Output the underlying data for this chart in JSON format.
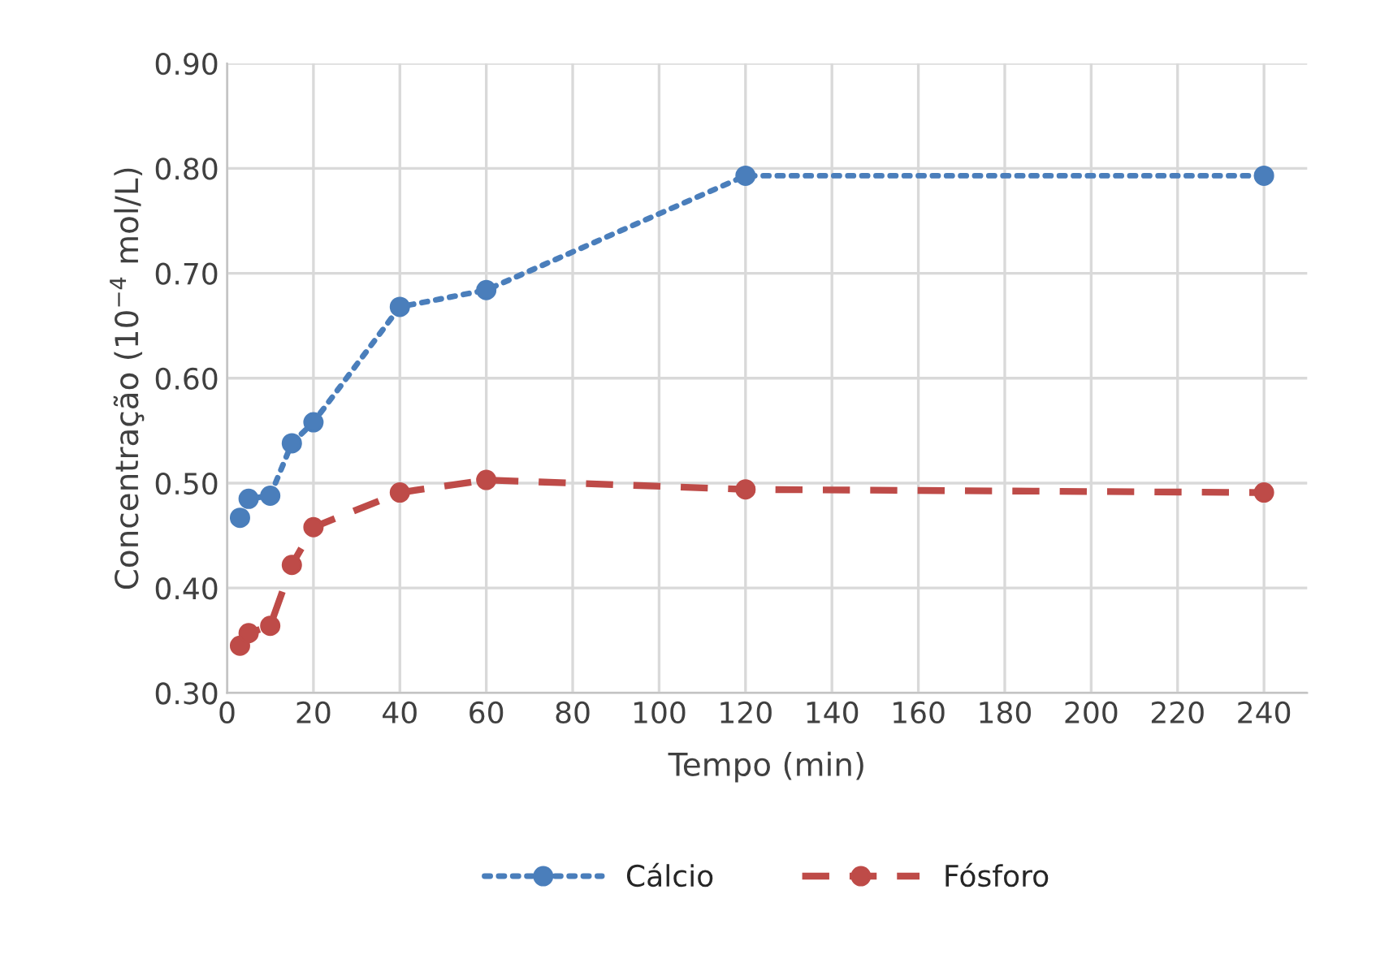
{
  "chart_data": {
    "type": "line",
    "xlabel": "Tempo (min)",
    "ylabel": "Concentração (10$^{−4}$ mol/L)",
    "x": [
      3,
      5,
      10,
      15,
      20,
      40,
      60,
      120,
      240
    ],
    "series": [
      {
        "name": "Cálcio",
        "color": "#4a7ebb",
        "line_style": "dotted",
        "values": [
          0.467,
          0.485,
          0.488,
          0.538,
          0.558,
          0.668,
          0.684,
          0.793,
          0.793
        ]
      },
      {
        "name": "Fósforo",
        "color": "#be4b48",
        "line_style": "dashed",
        "values": [
          0.345,
          0.357,
          0.364,
          0.422,
          0.458,
          0.491,
          0.503,
          0.494,
          0.491
        ]
      }
    ],
    "xlim": [
      0,
      250
    ],
    "xticks": [
      0,
      20,
      40,
      60,
      80,
      100,
      120,
      140,
      160,
      180,
      200,
      220,
      240
    ],
    "ylim": [
      0.3,
      0.9
    ],
    "yticks": [
      {
        "value": 0.3,
        "label": "0.30"
      },
      {
        "value": 0.4,
        "label": "0.40"
      },
      {
        "value": 0.5,
        "label": "0.50"
      },
      {
        "value": 0.6,
        "label": "0.60"
      },
      {
        "value": 0.7,
        "label": "0.70"
      },
      {
        "value": 0.8,
        "label": "0.80"
      },
      {
        "value": 0.9,
        "label": "0.90"
      }
    ],
    "grid": true,
    "legend": "bottom",
    "marker": "circle"
  }
}
